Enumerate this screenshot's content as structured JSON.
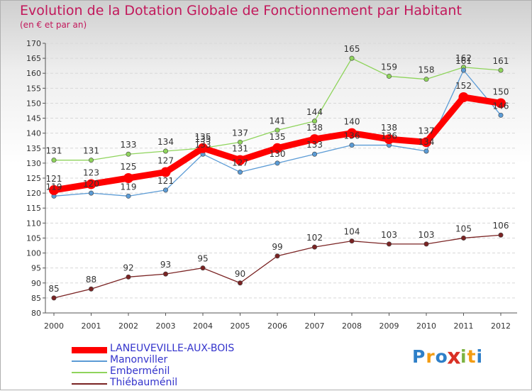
{
  "title": "Evolution de la Dotation Globale de Fonctionnement par Habitant",
  "subtitle": "(en € et par an)",
  "logo": {
    "letters": [
      "P",
      "r",
      "o",
      "x",
      "i",
      "t",
      "i"
    ],
    "colors": [
      "#2e7fc8",
      "#f39c12",
      "#2e7fc8",
      "#d93025",
      "#7cb342",
      "#f39c12",
      "#2e7fc8"
    ]
  },
  "chart_data": {
    "type": "line",
    "title": "Evolution de la Dotation Globale de Fonctionnement par Habitant",
    "subtitle": "(en € et par an)",
    "xlabel": "",
    "ylabel": "",
    "x": [
      2000,
      2001,
      2002,
      2003,
      2004,
      2005,
      2006,
      2007,
      2008,
      2009,
      2010,
      2011,
      2012
    ],
    "ylim": [
      80,
      170
    ],
    "yticks": [
      80,
      85,
      90,
      95,
      100,
      105,
      110,
      115,
      120,
      125,
      130,
      135,
      140,
      145,
      150,
      155,
      160,
      165,
      170
    ],
    "grid": "horizontal dashed",
    "legend": "bottom-left",
    "series": [
      {
        "name": "LANEUVEVILLE-AUX-BOIS",
        "values": [
          121,
          123,
          125,
          127,
          135,
          131,
          135,
          138,
          140,
          138,
          137,
          152,
          150
        ],
        "color": "#ff0000",
        "emphasis": true
      },
      {
        "name": "Manonviller",
        "values": [
          119,
          120,
          119,
          121,
          133,
          127,
          130,
          133,
          136,
          136,
          134,
          161,
          146
        ],
        "color": "#5b9bd5"
      },
      {
        "name": "Emberménil",
        "values": [
          131,
          131,
          133,
          134,
          135,
          137,
          141,
          144,
          165,
          159,
          158,
          162,
          161
        ],
        "color": "#8fd45c"
      },
      {
        "name": "Thiébauménil",
        "values": [
          85,
          88,
          92,
          93,
          95,
          90,
          99,
          102,
          104,
          103,
          103,
          105,
          106
        ],
        "color": "#7a2323"
      }
    ]
  }
}
